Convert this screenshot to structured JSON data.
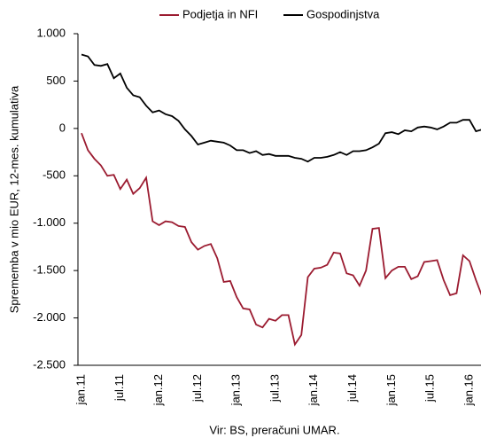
{
  "chart_data": {
    "type": "line",
    "y_label": "Sprememba v mio EUR, 12-mes. kumulativa",
    "source": "Vir: BS, preračuni UMAR.",
    "categories": [
      "jan.11",
      null,
      null,
      null,
      null,
      null,
      "jul.11",
      null,
      null,
      null,
      null,
      null,
      "jan.12",
      null,
      null,
      null,
      null,
      null,
      "jul.12",
      null,
      null,
      null,
      null,
      null,
      "jan.13",
      null,
      null,
      null,
      null,
      null,
      "jul.13",
      null,
      null,
      null,
      null,
      null,
      "jan.14",
      null,
      null,
      null,
      null,
      null,
      "jul.14",
      null,
      null,
      null,
      null,
      null,
      "jan.15",
      null,
      null,
      null,
      null,
      null,
      "jul.15",
      null,
      null,
      null,
      null,
      null,
      "jan.16",
      null,
      null
    ],
    "series": [
      {
        "name": "Podjetja in NFI",
        "color": "#9b1b30",
        "values": [
          -50,
          -230,
          -320,
          -390,
          -500,
          -490,
          -640,
          -540,
          -690,
          -630,
          -520,
          -980,
          -1020,
          -980,
          -990,
          -1030,
          -1040,
          -1200,
          -1280,
          -1240,
          -1220,
          -1370,
          -1620,
          -1610,
          -1780,
          -1900,
          -1910,
          -2070,
          -2100,
          -2010,
          -2030,
          -1970,
          -1970,
          -2280,
          -2180,
          -1570,
          -1480,
          -1470,
          -1440,
          -1310,
          -1320,
          -1530,
          -1550,
          -1660,
          -1500,
          -1060,
          -1050,
          -1580,
          -1500,
          -1460,
          -1460,
          -1590,
          -1560,
          -1410,
          -1400,
          -1390,
          -1600,
          -1760,
          -1740,
          -1340,
          -1400,
          -1600,
          -1780
        ]
      },
      {
        "name": "Gospodinjstva",
        "color": "#000000",
        "values": [
          780,
          760,
          670,
          660,
          680,
          530,
          580,
          430,
          350,
          330,
          240,
          170,
          190,
          150,
          130,
          80,
          -10,
          -80,
          -170,
          -150,
          -130,
          -140,
          -150,
          -180,
          -230,
          -230,
          -260,
          -240,
          -280,
          -270,
          -290,
          -290,
          -290,
          -310,
          -320,
          -350,
          -310,
          -310,
          -300,
          -280,
          -250,
          -280,
          -240,
          -240,
          -230,
          -200,
          -160,
          -50,
          -40,
          -60,
          -20,
          -30,
          10,
          20,
          10,
          -10,
          20,
          60,
          60,
          90,
          90,
          -30,
          -10
        ]
      }
    ],
    "ylim": [
      -2500,
      1000
    ],
    "yticks": [
      {
        "value": 1000,
        "label": "1.000"
      },
      500,
      0,
      -500,
      {
        "value": -1000,
        "label": "-1.000"
      },
      {
        "value": -1500,
        "label": "-1.500"
      },
      {
        "value": -2000,
        "label": "-2.000"
      },
      {
        "value": -2500,
        "label": "-2.500"
      }
    ]
  }
}
